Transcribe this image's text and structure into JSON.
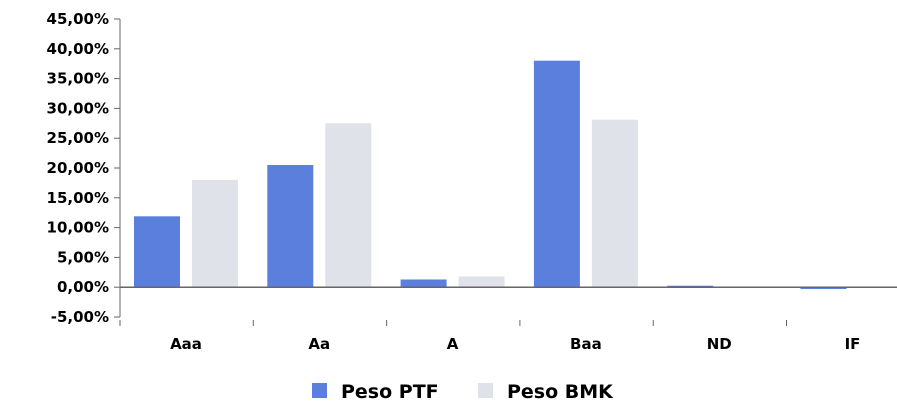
{
  "chart_data": {
    "type": "bar",
    "categories": [
      "Aaa",
      "Aa",
      "A",
      "Baa",
      "ND",
      "IF"
    ],
    "series": [
      {
        "name": "Peso PTF",
        "color": "#5b7fdd",
        "values": [
          11.9,
          20.5,
          1.3,
          38.0,
          0.15,
          -0.3
        ]
      },
      {
        "name": "Peso BMK",
        "color": "#dfe2e8",
        "values": [
          18.0,
          27.5,
          1.8,
          28.1,
          0.0,
          0.0
        ]
      }
    ],
    "ylim": [
      -5,
      45
    ],
    "yticks": [
      -5,
      0,
      5,
      10,
      15,
      20,
      25,
      30,
      35,
      40,
      45
    ],
    "ytick_labels": [
      "-5,00%",
      "0,00%",
      "5,00%",
      "10,00%",
      "15,00%",
      "20,00%",
      "25,00%",
      "30,00%",
      "35,00%",
      "40,00%",
      "45,00%"
    ],
    "legend_position": "bottom-center",
    "title": "",
    "xlabel": "",
    "ylabel": "",
    "grid": false
  }
}
